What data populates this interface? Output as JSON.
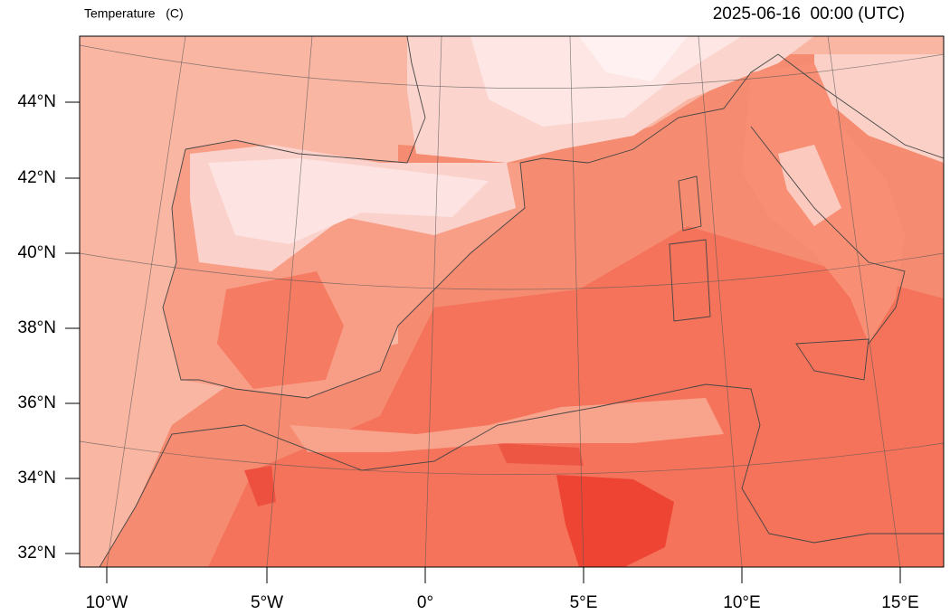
{
  "header": {
    "title": "Temperature   (C)",
    "time": "2025-06-16  00:00 (UTC)"
  },
  "map": {
    "lat_labels": [
      "44°N",
      "42°N",
      "40°N",
      "38°N",
      "36°N",
      "34°N",
      "32°N"
    ],
    "lon_labels": [
      "10°W",
      "5°W",
      "0°",
      "5°E",
      "10°E",
      "15°E"
    ]
  }
}
